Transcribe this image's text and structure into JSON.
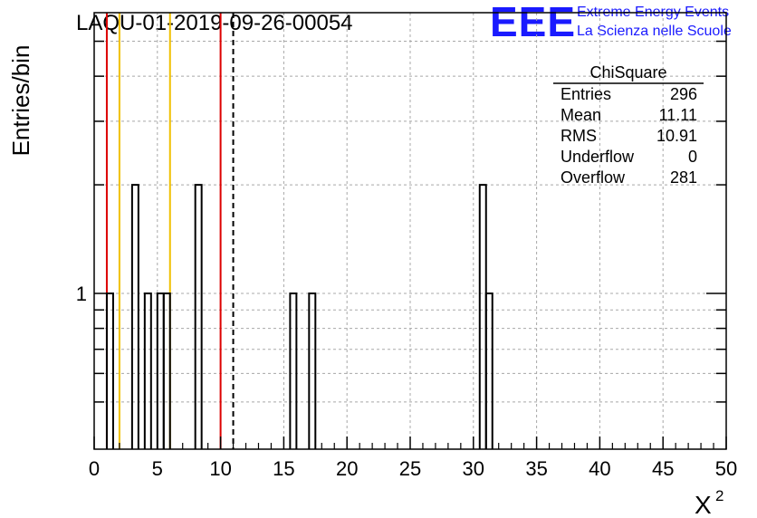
{
  "chart_data": {
    "type": "histogram",
    "title": "LAQU-01-2019-09-26-00054",
    "xlabel": "X",
    "xlabel_superscript": "2",
    "ylabel": "Entries/bin",
    "xlim": [
      0,
      50
    ],
    "ylim": [
      0.37,
      6
    ],
    "log_y": true,
    "grid": true,
    "bin_width": 0.5,
    "x_ticks": [
      "0",
      "5",
      "10",
      "15",
      "20",
      "25",
      "30",
      "35",
      "40",
      "45",
      "50"
    ],
    "y_ticks": [
      "1"
    ],
    "bins": [
      {
        "x": 1.0,
        "count": 1
      },
      {
        "x": 3.0,
        "count": 2
      },
      {
        "x": 4.0,
        "count": 1
      },
      {
        "x": 5.0,
        "count": 1
      },
      {
        "x": 5.5,
        "count": 1
      },
      {
        "x": 8.0,
        "count": 2
      },
      {
        "x": 15.5,
        "count": 1
      },
      {
        "x": 17.0,
        "count": 1
      },
      {
        "x": 30.5,
        "count": 2
      },
      {
        "x": 31.0,
        "count": 1
      }
    ],
    "vertical_lines": [
      {
        "x": 1,
        "color": "#dd0000",
        "style": "solid"
      },
      {
        "x": 2,
        "color": "#f0c000",
        "style": "solid"
      },
      {
        "x": 6,
        "color": "#f0c000",
        "style": "solid"
      },
      {
        "x": 10,
        "color": "#dd0000",
        "style": "solid"
      },
      {
        "x": 11,
        "color": "#000000",
        "style": "dashed"
      }
    ],
    "stats": {
      "title": "ChiSquare",
      "rows": [
        {
          "label": "Entries",
          "value": "296"
        },
        {
          "label": "Mean",
          "value": "11.11"
        },
        {
          "label": "RMS",
          "value": "10.91"
        },
        {
          "label": "Underflow",
          "value": "0"
        },
        {
          "label": "Overflow",
          "value": "281"
        }
      ]
    }
  },
  "logo": {
    "mark": "EEE",
    "line1": "Extreme Energy Events",
    "line2": "La Scienza nelle Scuole",
    "color": "#1a1aff"
  }
}
